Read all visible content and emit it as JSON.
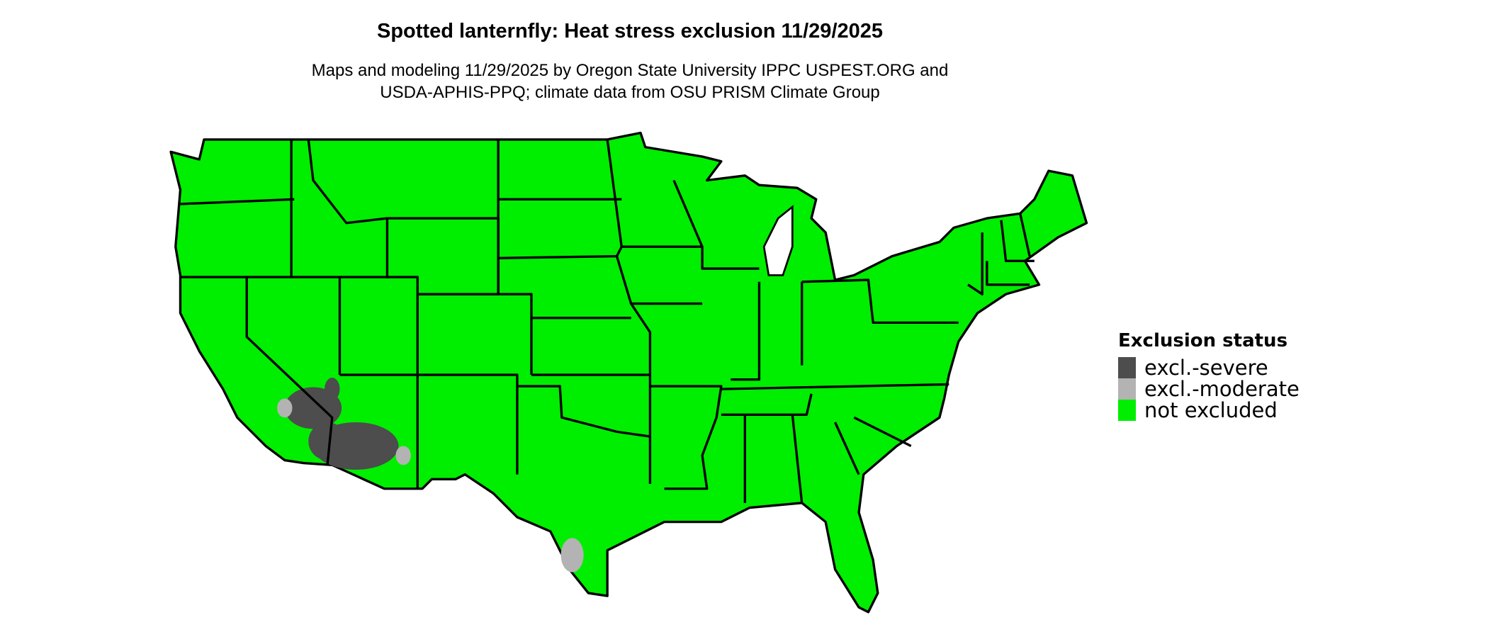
{
  "title": "Spotted lanternfly: Heat stress exclusion 11/29/2025",
  "subtitle_line1": "Maps and modeling 11/29/2025 by Oregon State University IPPC USPEST.ORG and",
  "subtitle_line2": "USDA-APHIS-PPQ; climate data from OSU PRISM Climate Group",
  "legend": {
    "title": "Exclusion status",
    "items": [
      {
        "label": "excl.-severe",
        "color": "#4d4d4d"
      },
      {
        "label": "excl.-moderate",
        "color": "#b3b3b3"
      },
      {
        "label": "not excluded",
        "color": "#00ee00"
      }
    ]
  },
  "colors": {
    "land": "#00ee00",
    "border": "#000000"
  }
}
